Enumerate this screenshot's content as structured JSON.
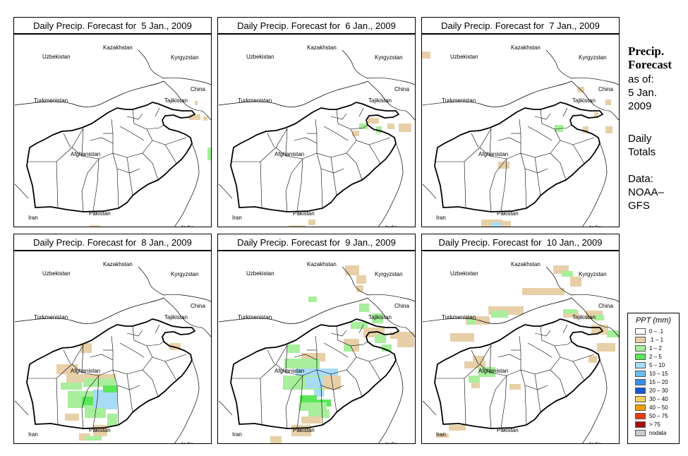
{
  "panels": [
    {
      "title": "Daily Precip. Forecast for  5 Jan., 2009",
      "day": 5
    },
    {
      "title": "Daily Precip. Forecast for  6 Jan., 2009",
      "day": 6
    },
    {
      "title": "Daily Precip. Forecast for  7 Jan., 2009",
      "day": 7
    },
    {
      "title": "Daily Precip. Forecast for  8 Jan., 2009",
      "day": 8
    },
    {
      "title": "Daily Precip. Forecast for  9 Jan., 2009",
      "day": 9
    },
    {
      "title": "Daily Precip. Forecast for  10 Jan., 2009",
      "day": 10
    }
  ],
  "country_labels": {
    "uzbekistan": "Uzbekistan",
    "kazakhstan": "Kazakhstan",
    "kyrgyzstan": "Kyrgyzstan",
    "china": "China",
    "turkmenistan": "Turkmenistan",
    "tajikistan": "Tajikistan",
    "afghanistan": "Afghanistan",
    "iran": "Iran",
    "pakistan": "Pakistan",
    "india": "India"
  },
  "side": {
    "title_line1": "Precip.",
    "title_line2": "Forecast",
    "asof_line1": "as of:",
    "asof_line2": "5 Jan.",
    "asof_line3": "2009",
    "daily_line1": "Daily",
    "daily_line2": "Totals",
    "data_line1": "Data:",
    "data_line2": "NOAA–",
    "data_line3": "GFS"
  },
  "legend": {
    "title": "PPT (mm)",
    "items": [
      {
        "label": "0 – .1",
        "color": "#ffffff"
      },
      {
        "label": ".1 – 1",
        "color": "#e7d0a8"
      },
      {
        "label": "1 – 2",
        "color": "#a8ee9c"
      },
      {
        "label": "2 – 5",
        "color": "#5ce65a"
      },
      {
        "label": "5 – 10",
        "color": "#a8dcf6"
      },
      {
        "label": "10 – 15",
        "color": "#6cbcf0"
      },
      {
        "label": "15 – 20",
        "color": "#3a8ee6"
      },
      {
        "label": "20 – 30",
        "color": "#1458d6"
      },
      {
        "label": "30 – 40",
        "color": "#f4d060"
      },
      {
        "label": "40 – 50",
        "color": "#f4a000"
      },
      {
        "label": "50 – 75",
        "color": "#e83c10"
      },
      {
        "label": "> 75",
        "color": "#a01010"
      },
      {
        "label": "nodata",
        "color": "#cccccc"
      }
    ]
  }
}
